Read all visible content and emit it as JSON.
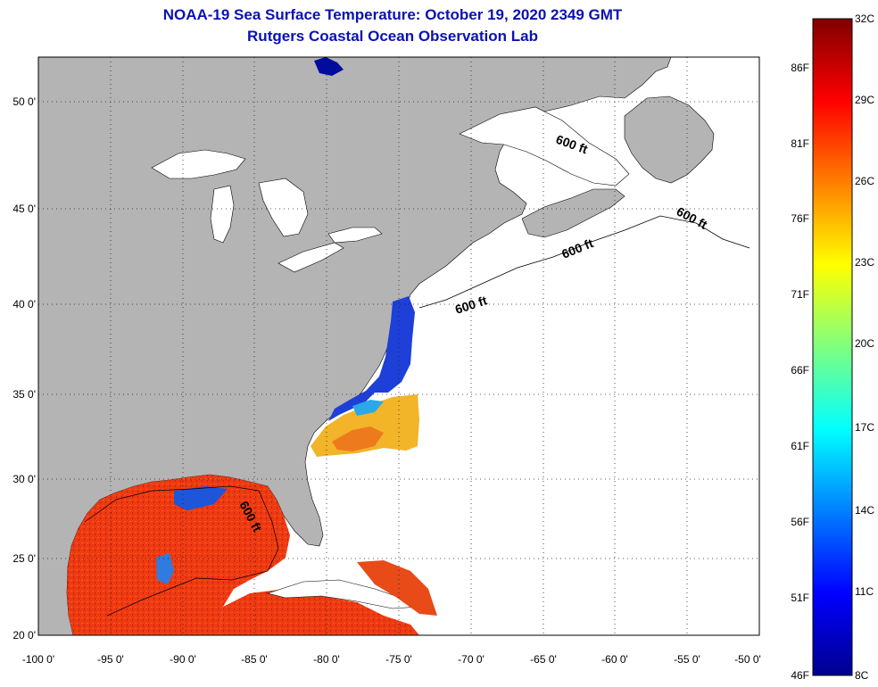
{
  "title": {
    "line1": "NOAA-19 Sea Surface Temperature:  October 19, 2020 2349 GMT",
    "line2": "Rutgers Coastal Ocean Observation Lab"
  },
  "map": {
    "lat_labels": [
      "50 0'",
      "45 0'",
      "40 0'",
      "35 0'",
      "30 0'",
      "25 0'",
      "20 0'"
    ],
    "lon_labels": [
      "-100 0'",
      "-95 0'",
      "-90 0'",
      "-85 0'",
      "-80 0'",
      "-75 0'",
      "-70 0'",
      "-65 0'",
      "-60 0'",
      "-55 0'",
      "-50 0'"
    ],
    "contour_label": "600 ft",
    "colors": {
      "land": "#b4b4b4",
      "ocean_no_data": "#ffffff",
      "grid": "#000000"
    }
  },
  "colorbar": {
    "celsius_labels": [
      "32C",
      "29C",
      "26C",
      "23C",
      "20C",
      "17C",
      "14C",
      "11C",
      "8C"
    ],
    "fahrenheit_labels": [
      "86F",
      "81F",
      "76F",
      "71F",
      "66F",
      "61F",
      "56F",
      "51F",
      "46F"
    ],
    "colormap": "jet"
  }
}
